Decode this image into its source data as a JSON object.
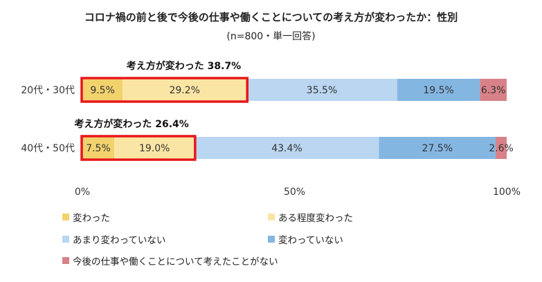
{
  "chart_data": {
    "type": "bar",
    "orientation": "horizontal",
    "stacked": true,
    "title": "コロナ禍の前と後で今後の仕事や働くことについての考え方が変わったか：性別",
    "subtitle": "(n=800・単一回答)",
    "categories": [
      "20代・30代",
      "40代・50代"
    ],
    "series": [
      {
        "name": "変わった",
        "color": "#f2d26c",
        "values": [
          9.5,
          7.5
        ],
        "labels": [
          "9.5%",
          "7.5%"
        ]
      },
      {
        "name": "ある程度変わった",
        "color": "#fae5a4",
        "values": [
          29.2,
          19.0
        ],
        "labels": [
          "29.2%",
          "19.0%"
        ]
      },
      {
        "name": "あまり変わっていない",
        "color": "#bad6f0",
        "values": [
          35.5,
          43.4
        ],
        "labels": [
          "35.5%",
          "43.4%"
        ]
      },
      {
        "name": "変わっていない",
        "color": "#84b6e2",
        "values": [
          19.5,
          27.5
        ],
        "labels": [
          "19.5%",
          "27.5%"
        ]
      },
      {
        "name": "今後の仕事や働くことについて考えたことがない",
        "color": "#d98188",
        "values": [
          6.3,
          2.6
        ],
        "labels": [
          "6.3%",
          "2.6%"
        ]
      }
    ],
    "annotations": [
      {
        "text": "考え方が変わった 38.7%",
        "category": "20代・30代",
        "value": 38.7
      },
      {
        "text": "考え方が変わった 26.4%",
        "category": "40代・50代",
        "value": 26.4
      }
    ],
    "highlight_color": "#e8151b",
    "x_ticks": [
      "0%",
      "50%",
      "100%"
    ],
    "xlim": [
      0,
      100
    ],
    "grid": false,
    "legend_position": "bottom"
  }
}
